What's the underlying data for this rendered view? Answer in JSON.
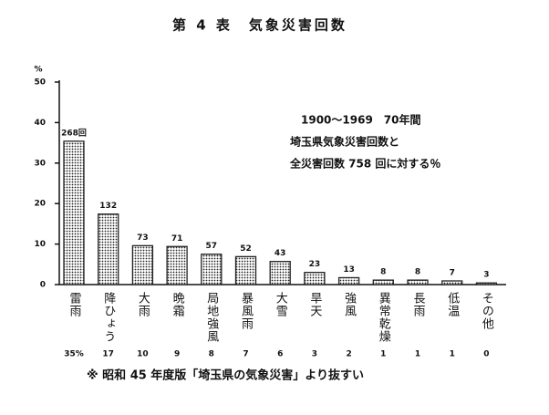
{
  "chart_data": {
    "type": "bar",
    "title": "第 4 表　気象災害回数",
    "y_label": "%",
    "categories": [
      "雷雨",
      "降ひょう",
      "大雨",
      "晩霜",
      "局地強風",
      "暴風雨",
      "大雪",
      "旱天",
      "強風",
      "異常乾燥",
      "長雨",
      "低温",
      "その他"
    ],
    "values": [
      35.4,
      17.4,
      9.6,
      9.4,
      7.5,
      6.9,
      5.7,
      3.0,
      1.7,
      1.1,
      1.1,
      0.9,
      0.4
    ],
    "value_labels": [
      "35%",
      "17",
      "10",
      "9",
      "8",
      "7",
      "6",
      "3",
      "2",
      "1",
      "1",
      "1",
      "0"
    ],
    "count_labels": [
      "268回",
      "132",
      "73",
      "71",
      "57",
      "52",
      "43",
      "23",
      "13",
      "8",
      "8",
      "7",
      "3"
    ],
    "annotations": [
      "1900〜1969　70年間",
      "埼玉県気象災害回数と",
      "全災害回数 758 回に対する％"
    ],
    "footnote": "※ 昭和 45 年度版「埼玉県の気象災害」より抜すい",
    "color": "#222222",
    "ylim": [
      0,
      50
    ],
    "yticks": [
      0,
      10,
      20,
      30,
      40,
      50
    ]
  }
}
